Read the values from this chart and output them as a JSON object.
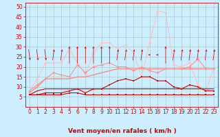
{
  "x": [
    0,
    1,
    2,
    3,
    4,
    5,
    6,
    7,
    8,
    9,
    10,
    11,
    12,
    13,
    14,
    15,
    16,
    17,
    18,
    19,
    20,
    21,
    22,
    23
  ],
  "line_min": [
    6,
    6,
    6,
    6,
    6,
    7,
    7,
    6,
    6,
    6,
    6,
    6,
    6,
    6,
    6,
    6,
    6,
    6,
    6,
    6,
    6,
    6,
    6,
    6
  ],
  "line_q1": [
    6,
    8,
    9,
    9,
    9,
    9,
    9,
    9,
    9,
    9,
    9,
    9,
    9,
    9,
    9,
    9,
    9,
    9,
    9,
    9,
    9,
    9,
    9,
    9
  ],
  "line_med": [
    7,
    10,
    14,
    14,
    14,
    14,
    15,
    15,
    16,
    17,
    18,
    19,
    19,
    19,
    19,
    19,
    19,
    19,
    19,
    19,
    19,
    19,
    19,
    19
  ],
  "line_q3": [
    8,
    11,
    14,
    17,
    16,
    15,
    21,
    17,
    20,
    21,
    22,
    20,
    20,
    18,
    20,
    18,
    17,
    19,
    19,
    19,
    20,
    24,
    19,
    19
  ],
  "line_max": [
    8,
    14,
    22,
    22,
    22,
    29,
    22,
    16,
    27,
    32,
    32,
    29,
    31,
    27,
    15,
    32,
    48,
    47,
    21,
    20,
    22,
    11,
    8,
    19
  ],
  "line_mark": [
    6,
    6,
    7,
    7,
    7,
    8,
    9,
    7,
    9,
    9,
    11,
    13,
    14,
    13,
    15,
    15,
    13,
    13,
    10,
    9,
    11,
    10,
    8,
    8
  ],
  "wind_angles": [
    45,
    45,
    45,
    135,
    135,
    180,
    180,
    180,
    180,
    180,
    180,
    135,
    135,
    135,
    135,
    270,
    270,
    180,
    135,
    135,
    135,
    135,
    135,
    135
  ],
  "bg_color": "#cceeff",
  "grid_color": "#aacccc",
  "color_dark": "#cc0000",
  "color_mid": "#ff8888",
  "color_light": "#ffbbbb",
  "xlabel": "Vent moyen/en rafales ( km/h )",
  "ylim": [
    0,
    52
  ],
  "xlim": [
    -0.5,
    23.5
  ],
  "yticks": [
    5,
    10,
    15,
    20,
    25,
    30,
    35,
    40,
    45,
    50
  ],
  "xticks": [
    0,
    1,
    2,
    3,
    4,
    5,
    6,
    7,
    8,
    9,
    10,
    11,
    12,
    13,
    14,
    15,
    16,
    17,
    18,
    19,
    20,
    21,
    22,
    23
  ],
  "tick_fontsize": 5.5,
  "label_fontsize": 6.5
}
